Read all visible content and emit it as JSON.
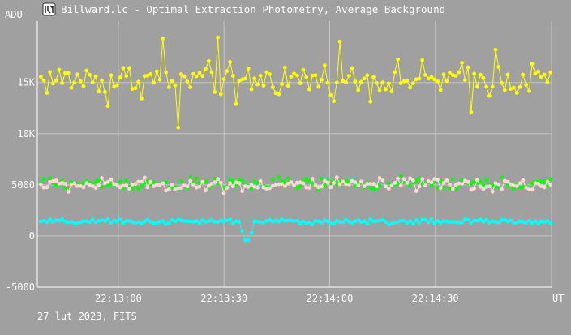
{
  "window": {
    "title": "Billward.lc - Optimal Extraction Photometry, Average Background"
  },
  "footer": {
    "caption": "27 lut 2023, FITS"
  },
  "colors": {
    "background": "#a0a0a0",
    "grid": "#c4c4c4",
    "axis": "#ffffff",
    "text": "#ffffff",
    "series_yellow": "#ffff00",
    "series_green": "#00ff00",
    "series_pink": "#ffd8d8",
    "series_cyan": "#00ffff"
  },
  "chart_data": {
    "type": "scatter",
    "ylabel": "ADU",
    "xlabel": "UT",
    "ylim": [
      -5000,
      21000
    ],
    "xlim": [
      "22:12:37",
      "22:15:03"
    ],
    "y_ticks": [
      {
        "value": -5000,
        "label": "-5000"
      },
      {
        "value": 0,
        "label": "0"
      },
      {
        "value": 5000,
        "label": "5000"
      },
      {
        "value": 10000,
        "label": "10K"
      },
      {
        "value": 15000,
        "label": "15K"
      }
    ],
    "x_ticks": [
      {
        "value": "22:13:00",
        "label": "22:13:00"
      },
      {
        "value": "22:13:30",
        "label": "22:13:30"
      },
      {
        "value": "22:14:00",
        "label": "22:14:00"
      },
      {
        "value": "22:14:30",
        "label": "22:14:30"
      }
    ],
    "grid": true,
    "series": [
      {
        "color": "#ffff00",
        "line": true,
        "mean": 15300,
        "spread": 1500,
        "outliers": [
          [
            22,
            12700
          ],
          [
            40,
            19300
          ],
          [
            45,
            10600
          ],
          [
            58,
            19400
          ],
          [
            64,
            12900
          ],
          [
            98,
            19000
          ],
          [
            141,
            12100
          ],
          [
            149,
            18200
          ]
        ]
      },
      {
        "color": "#00ff00",
        "line": false,
        "mean": 5100,
        "spread": 550
      },
      {
        "color": "#ffd8d8",
        "line": true,
        "mean": 5000,
        "spread": 600
      },
      {
        "color": "#00ffff",
        "line": true,
        "mean": 1400,
        "spread": 220,
        "outliers": [
          [
            66,
            500
          ],
          [
            67,
            -400
          ],
          [
            68,
            -400
          ],
          [
            69,
            300
          ]
        ]
      }
    ]
  }
}
